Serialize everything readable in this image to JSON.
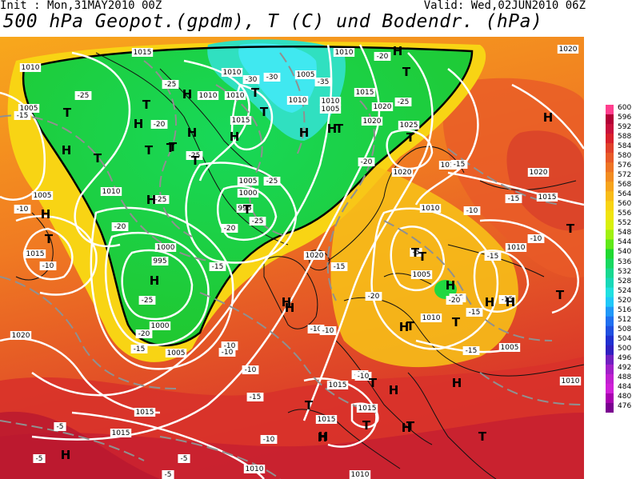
{
  "header": {
    "init": "Init : Mon,31MAY2010 00Z",
    "valid": "Valid: Wed,02JUN2010 06Z",
    "title": "500 hPa Geopot.(gpdm), T (C) und Bodendr. (hPa)"
  },
  "colorbar": {
    "levels": [
      "600",
      "596",
      "592",
      "588",
      "584",
      "580",
      "576",
      "572",
      "568",
      "564",
      "560",
      "556",
      "552",
      "548",
      "544",
      "540",
      "536",
      "532",
      "528",
      "524",
      "520",
      "516",
      "512",
      "508",
      "504",
      "500",
      "496",
      "492",
      "488",
      "484",
      "480",
      "476"
    ],
    "colors": [
      "#ff3e8e",
      "#b30036",
      "#c8103c",
      "#d8202c",
      "#e0402a",
      "#e85a28",
      "#ee7424",
      "#f28c20",
      "#f6a41c",
      "#f8bc18",
      "#f8d414",
      "#f0e410",
      "#d8f00c",
      "#a0f010",
      "#60e818",
      "#20d830",
      "#18d860",
      "#18d890",
      "#18d8b8",
      "#20e0e0",
      "#20c8f8",
      "#2098f8",
      "#2070f0",
      "#2050e0",
      "#2030d0",
      "#3020c0",
      "#7020c0",
      "#a020c8",
      "#c020d0",
      "#d020d8",
      "#a800b0",
      "#7a0090"
    ]
  },
  "labels": {
    "pressure": [
      {
        "t": "1015"
      },
      {
        "t": "1010"
      },
      {
        "t": "1010"
      },
      {
        "t": "1005"
      },
      {
        "t": "1010"
      },
      {
        "t": "1010"
      },
      {
        "t": "1015"
      },
      {
        "t": "1005"
      },
      {
        "t": "1010"
      },
      {
        "t": "1010"
      },
      {
        "t": "1010"
      },
      {
        "t": "1005"
      },
      {
        "t": "1015"
      },
      {
        "t": "1020"
      },
      {
        "t": "1025"
      },
      {
        "t": "1020"
      },
      {
        "t": "1015"
      },
      {
        "t": "1020"
      },
      {
        "t": "1010"
      },
      {
        "t": "1005"
      },
      {
        "t": "1010"
      },
      {
        "t": "1005"
      },
      {
        "t": "1000"
      },
      {
        "t": "995"
      },
      {
        "t": "1015"
      },
      {
        "t": "1000"
      },
      {
        "t": "995"
      },
      {
        "t": "1020"
      },
      {
        "t": "1020"
      },
      {
        "t": "1015"
      },
      {
        "t": "1005"
      },
      {
        "t": "1000"
      },
      {
        "t": "1005"
      },
      {
        "t": "1005"
      },
      {
        "t": "1010"
      },
      {
        "t": "1015"
      },
      {
        "t": "1010"
      },
      {
        "t": "1015"
      },
      {
        "t": "1015"
      },
      {
        "t": "1015"
      },
      {
        "t": "1020"
      },
      {
        "t": "1015"
      },
      {
        "t": "1010"
      },
      {
        "t": "1010"
      },
      {
        "t": "1010"
      },
      {
        "t": "1020"
      }
    ],
    "temperature": [
      {
        "t": "-20"
      },
      {
        "t": "-25"
      },
      {
        "t": "-25"
      },
      {
        "t": "-30"
      },
      {
        "t": "-35"
      },
      {
        "t": "-30"
      },
      {
        "t": "-25"
      },
      {
        "t": "-15"
      },
      {
        "t": "-20"
      },
      {
        "t": "-25"
      },
      {
        "t": "-25"
      },
      {
        "t": "-25"
      },
      {
        "t": "-20"
      },
      {
        "t": "-10"
      },
      {
        "t": "-20"
      },
      {
        "t": "-25"
      },
      {
        "t": "-20"
      },
      {
        "t": "-15"
      },
      {
        "t": "-25"
      },
      {
        "t": "-20"
      },
      {
        "t": "-15"
      },
      {
        "t": "-10"
      },
      {
        "t": "-15"
      },
      {
        "t": "-10"
      },
      {
        "t": "-15"
      },
      {
        "t": "-10"
      },
      {
        "t": "-5"
      },
      {
        "t": "-10"
      },
      {
        "t": "-20"
      },
      {
        "t": "-15"
      },
      {
        "t": "-15"
      },
      {
        "t": "-20"
      },
      {
        "t": "-15"
      },
      {
        "t": "-15"
      },
      {
        "t": "-15"
      },
      {
        "t": "-10"
      },
      {
        "t": "-15"
      },
      {
        "t": "-10"
      },
      {
        "t": "-10"
      },
      {
        "t": "-10"
      },
      {
        "t": "-10"
      },
      {
        "t": "-10"
      },
      {
        "t": "-5"
      },
      {
        "t": "-5"
      },
      {
        "t": "-5"
      },
      {
        "t": "-5"
      },
      {
        "t": "-10"
      },
      {
        "t": "-15"
      }
    ],
    "centers": [
      {
        "t": "H"
      },
      {
        "t": "T"
      },
      {
        "t": "H"
      },
      {
        "t": "T"
      },
      {
        "t": "T"
      },
      {
        "t": "H"
      },
      {
        "t": "T"
      },
      {
        "t": "H"
      },
      {
        "t": "T"
      },
      {
        "t": "H"
      },
      {
        "t": "T"
      },
      {
        "t": "H"
      },
      {
        "t": "T"
      },
      {
        "t": "T"
      },
      {
        "t": "H"
      },
      {
        "t": "H"
      },
      {
        "t": "T"
      },
      {
        "t": "T"
      },
      {
        "t": "H"
      },
      {
        "t": "T"
      },
      {
        "t": "T"
      },
      {
        "t": "H"
      },
      {
        "t": "T"
      },
      {
        "t": "H"
      },
      {
        "t": "T"
      },
      {
        "t": "T"
      },
      {
        "t": "H"
      },
      {
        "t": "T"
      },
      {
        "t": "H"
      },
      {
        "t": "H"
      },
      {
        "t": "T"
      },
      {
        "t": "T"
      },
      {
        "t": "H"
      },
      {
        "t": "H"
      },
      {
        "t": "T"
      },
      {
        "t": "H"
      },
      {
        "t": "H"
      },
      {
        "t": "T"
      },
      {
        "t": "T"
      },
      {
        "t": "H"
      },
      {
        "t": "H"
      },
      {
        "t": "T"
      },
      {
        "t": "T"
      },
      {
        "t": "T"
      },
      {
        "t": "H"
      },
      {
        "t": "H"
      },
      {
        "t": "H"
      },
      {
        "t": "T"
      },
      {
        "t": "H"
      }
    ]
  }
}
